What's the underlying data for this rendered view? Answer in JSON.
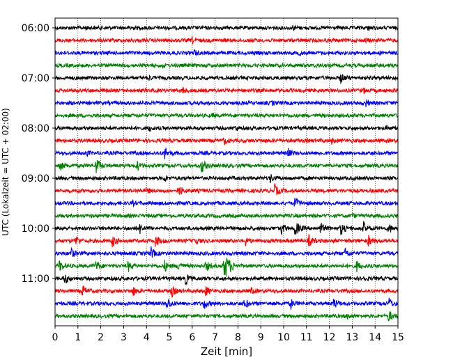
{
  "chart_data": {
    "type": "line",
    "chart_kind": "helicorder seismogram",
    "xlabel": "Zeit  [min]",
    "ylabel": "UTC (Lokalzeit = UTC + 02:00)",
    "xlim": [
      0,
      15
    ],
    "x_ticks": [
      "0",
      "1",
      "2",
      "3",
      "4",
      "5",
      "6",
      "7",
      "8",
      "9",
      "10",
      "11",
      "12",
      "13",
      "14",
      "15"
    ],
    "y_tick_labels": [
      "06:00",
      "07:00",
      "08:00",
      "09:00",
      "10:00",
      "11:00"
    ],
    "y_tick_trace_index": [
      0,
      4,
      8,
      12,
      16,
      20
    ],
    "grid": "vertical dotted at each minute",
    "trace_colors": [
      "#000000",
      "#ff0000",
      "#0000ff",
      "#008000"
    ],
    "traces": [
      {
        "start": "06:00",
        "events": [
          [
            1.3,
            0.3
          ],
          [
            3.3,
            0.35
          ],
          [
            10.4,
            0.3
          ],
          [
            13.7,
            0.35
          ]
        ]
      },
      {
        "start": "06:15",
        "events": [
          [
            6.0,
            0.4
          ],
          [
            13.6,
            0.3
          ]
        ]
      },
      {
        "start": "06:30",
        "events": [
          [
            6.1,
            0.45
          ],
          [
            10.7,
            0.35
          ]
        ]
      },
      {
        "start": "06:45",
        "events": [
          [
            4.7,
            0.3
          ],
          [
            11.4,
            0.3
          ]
        ]
      },
      {
        "start": "07:00",
        "events": [
          [
            12.5,
            0.8
          ],
          [
            4.1,
            0.3
          ]
        ]
      },
      {
        "start": "07:15",
        "events": [
          [
            5.6,
            0.5
          ],
          [
            13.5,
            0.35
          ]
        ]
      },
      {
        "start": "07:30",
        "events": [
          [
            13.6,
            0.5
          ],
          [
            9.5,
            0.3
          ]
        ]
      },
      {
        "start": "07:45",
        "events": [
          [
            6.9,
            0.3
          ]
        ]
      },
      {
        "start": "08:00",
        "events": [
          [
            4.1,
            0.5
          ],
          [
            7.9,
            0.4
          ],
          [
            14.5,
            0.3
          ]
        ]
      },
      {
        "start": "08:15",
        "events": [
          [
            7.4,
            0.6
          ],
          [
            12.1,
            0.35
          ]
        ]
      },
      {
        "start": "08:30",
        "events": [
          [
            4.8,
            1.0
          ],
          [
            10.2,
            0.6
          ],
          [
            1.4,
            0.3
          ]
        ]
      },
      {
        "start": "08:45",
        "events": [
          [
            0.2,
            0.8
          ],
          [
            1.8,
            1.2
          ],
          [
            3.6,
            0.7
          ],
          [
            6.4,
            1.1
          ]
        ]
      },
      {
        "start": "09:00",
        "events": [
          [
            4.8,
            0.5
          ],
          [
            9.4,
            0.7
          ]
        ]
      },
      {
        "start": "09:15",
        "events": [
          [
            4.0,
            0.5
          ],
          [
            5.4,
            0.9
          ],
          [
            9.6,
            1.0
          ]
        ]
      },
      {
        "start": "09:30",
        "events": [
          [
            10.5,
            0.9
          ],
          [
            3.4,
            0.3
          ]
        ]
      },
      {
        "start": "09:45",
        "events": [
          [
            13.0,
            0.3
          ]
        ]
      },
      {
        "start": "10:00",
        "events": [
          [
            3.7,
            0.8
          ],
          [
            9.9,
            0.9
          ],
          [
            10.5,
            1.2
          ],
          [
            11.6,
            0.9
          ],
          [
            12.5,
            1.0
          ],
          [
            13.5,
            0.9
          ],
          [
            14.6,
            0.8
          ]
        ]
      },
      {
        "start": "10:15",
        "events": [
          [
            0.9,
            0.8
          ],
          [
            2.5,
            0.9
          ],
          [
            4.4,
            1.0
          ],
          [
            6.1,
            0.8
          ],
          [
            8.3,
            0.8
          ],
          [
            11.1,
            0.9
          ],
          [
            13.7,
            0.8
          ]
        ]
      },
      {
        "start": "10:30",
        "events": [
          [
            0.7,
            0.8
          ],
          [
            4.2,
            0.9
          ],
          [
            12.7,
            0.8
          ]
        ]
      },
      {
        "start": "10:45",
        "events": [
          [
            0.2,
            0.8
          ],
          [
            1.8,
            0.8
          ],
          [
            3.2,
            0.8
          ],
          [
            4.8,
            0.8
          ],
          [
            5.4,
            0.8
          ],
          [
            6.6,
            0.8
          ],
          [
            7.4,
            2.2
          ],
          [
            13.2,
            0.8
          ]
        ]
      },
      {
        "start": "11:00",
        "events": [
          [
            0.4,
            1.0
          ],
          [
            5.7,
            0.9
          ],
          [
            13.5,
            0.4
          ]
        ]
      },
      {
        "start": "11:15",
        "events": [
          [
            1.2,
            0.9
          ],
          [
            3.4,
            0.8
          ],
          [
            5.1,
            0.9
          ],
          [
            6.6,
            0.8
          ],
          [
            8.6,
            0.5
          ]
        ]
      },
      {
        "start": "11:30",
        "events": [
          [
            4.9,
            0.9
          ],
          [
            6.5,
            0.9
          ],
          [
            8.3,
            0.8
          ],
          [
            10.3,
            0.8
          ],
          [
            12.2,
            0.8
          ],
          [
            14.6,
            0.9
          ]
        ]
      },
      {
        "start": "11:45",
        "events": [
          [
            12.8,
            0.5
          ],
          [
            14.6,
            0.9
          ]
        ]
      }
    ]
  }
}
